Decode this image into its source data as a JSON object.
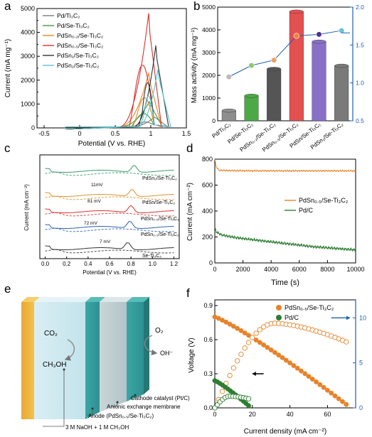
{
  "panels": {
    "a": {
      "letter": "a",
      "xlabel": "Potential (V vs. RHE)",
      "ylabel": "Current (mA mg⁻¹)",
      "legend": [
        "Pd/Ti₃C₂",
        "Pd/Se-Ti₃C₂",
        "PdSn₀.₂/Se-Ti₃C₂",
        "PdSn₀.₅/Se-Ti₃C₂",
        "PdSn₁/Se-Ti₃C₂",
        "PdSn₂/Se-Ti₃C₂"
      ]
    },
    "b": {
      "letter": "b",
      "ylabel": "Mass activity (mA mg⁻¹)"
    },
    "c": {
      "letter": "c",
      "xlabel": "Potential (V vs. RHE)",
      "ylabel": "Current (mA cm⁻²)",
      "curve_labels": [
        "PdSn₂/Se-Ti₃C₂",
        "PdSn/Se-Ti₃C₂",
        "PdSn₀.₅/Se-Ti₃C₂",
        "PdSn₀.₂/Se-Ti₃C₂",
        "Se-Ti₃C₂"
      ],
      "annotations": [
        "11mV",
        "81 mV",
        "72 mV",
        "7 mV"
      ]
    },
    "d": {
      "letter": "d",
      "xlabel": "Time (s)",
      "ylabel": "Current (mA cm⁻²)",
      "legend": [
        "PdSn₀.₅/Se-Ti₃C₂",
        "Pd/C"
      ]
    },
    "e": {
      "letter": "e",
      "labels": {
        "co2": "CO₂",
        "ch3oh": "CH₃OH",
        "o2": "O₂",
        "oh": "OH⁻",
        "cathode": "Cathode catalyst (Pt/C)",
        "membrane": "Anionic exchange membrane",
        "anode": "Anode (PdSn₀.₅/Se-Ti₃C₂)",
        "electrolyte": "3 M NaOH + 1 M CH₃OH"
      }
    },
    "f": {
      "letter": "f",
      "xlabel": "Current density (mA cm⁻²)",
      "ylabel": "Voltage (V)",
      "legend": [
        "PdSn₀.₅/Se-Ti₃C₂",
        "Pd/C"
      ]
    }
  },
  "colors": {
    "pd_ti3c2": "#7a7a7a",
    "pd_se": "#3f9e3a",
    "pdsn02": "#e8872a",
    "pdsn05": "#d93030",
    "pdsn1": "#333333",
    "pdsn2": "#59c3cf",
    "orange": "#e7832a",
    "green": "#2e7d32",
    "blue": "#1f5fb0"
  },
  "chart_data": [
    {
      "panel": "a",
      "type": "line",
      "xlabel": "Potential (V vs. RHE)",
      "ylabel": "Current (mA mg⁻¹)",
      "xlim": [
        -0.6,
        1.5
      ],
      "ylim": [
        0,
        5000
      ],
      "xticks": [
        -0.5,
        0.0,
        0.5,
        1.0,
        1.5
      ],
      "yticks": [
        0,
        500,
        1000,
        1500,
        2000,
        2500,
        3000,
        3500,
        4000,
        4500,
        5000
      ],
      "series": [
        {
          "name": "Pd/Ti₃C₂",
          "peak_x": 1.05,
          "peak_y": 450,
          "color_key": "pd_ti3c2"
        },
        {
          "name": "Pd/Se-Ti₃C₂",
          "peak_x": 0.98,
          "peak_y": 1100,
          "color_key": "pd_se"
        },
        {
          "name": "PdSn₀.₂/Se-Ti₃C₂",
          "peak_x": 0.97,
          "peak_y": 2300,
          "color_key": "pdsn02"
        },
        {
          "name": "PdSn₀.₅/Se-Ti₃C₂",
          "peak_x": 0.97,
          "peak_y": 4800,
          "color_key": "pdsn05"
        },
        {
          "name": "PdSn₁/Se-Ti₃C₂",
          "peak_x": 1.07,
          "peak_y": 3450,
          "color_key": "pdsn1"
        },
        {
          "name": "PdSn₂/Se-Ti₃C₂",
          "peak_x": 1.1,
          "peak_y": 2450,
          "color_key": "pdsn2"
        }
      ]
    },
    {
      "panel": "b",
      "type": "bar",
      "ylabel": "Mass activity (mA mg⁻¹)",
      "categories": [
        "Pd/Ti₃C₂",
        "Pd/Se-Ti₃C₂",
        "PdSn₀.₂/Se-Ti₃C₂",
        "PdSn₀.₅/Se-Ti₃C₂",
        "PdSn/Se-Ti₃C₂",
        "PdSn₂/Se-Ti₃C₂"
      ],
      "values": [
        450,
        1100,
        2280,
        4800,
        3480,
        2420
      ],
      "ylim": [
        0,
        5000
      ],
      "yticks": [
        0,
        1000,
        2000,
        3000,
        4000,
        5000
      ],
      "bar_colors": [
        "#8e8e8e",
        "#4caa45",
        "#555555",
        "#e35050",
        "#8870c8",
        "#7a7a7a"
      ],
      "right_axis": {
        "values": [
          1.08,
          1.23,
          1.3,
          1.62,
          1.64,
          1.69
        ],
        "ylim": [
          0.5,
          2.0
        ],
        "yticks": [
          0.5,
          1.0,
          1.5,
          2.0
        ],
        "marker_colors": [
          "#bbbbbb",
          "#8cc870",
          "#f0a060",
          "#f08040",
          "#503090",
          "#70c0d0"
        ]
      }
    },
    {
      "panel": "c",
      "type": "line",
      "xlabel": "Potential (V vs. RHE)",
      "ylabel": "Current (mA cm⁻²)",
      "xlim": [
        -0.05,
        1.25
      ],
      "xticks": [
        0.0,
        0.2,
        0.4,
        0.6,
        0.8,
        1.0,
        1.2
      ]
    },
    {
      "panel": "d",
      "type": "line",
      "xlabel": "Time (s)",
      "ylabel": "Current (mA cm⁻²)",
      "xlim": [
        0,
        10000
      ],
      "ylim": [
        0,
        800
      ],
      "xticks": [
        0,
        2000,
        4000,
        6000,
        8000,
        10000
      ],
      "yticks": [
        0,
        200,
        400,
        600,
        800
      ],
      "series": [
        {
          "name": "PdSn₀.₅/Se-Ti₃C₂",
          "x": [
            0,
            100,
            300,
            1000,
            3000,
            6000,
            10000
          ],
          "y": [
            800,
            740,
            715,
            712,
            710,
            710,
            710
          ]
        },
        {
          "name": "Pd/C",
          "x": [
            0,
            100,
            500,
            1500,
            3000,
            5000,
            7000,
            10000
          ],
          "y": [
            270,
            240,
            215,
            195,
            175,
            150,
            125,
            100
          ]
        }
      ]
    },
    {
      "panel": "f",
      "type": "scatter",
      "xlabel": "Current density (mA cm⁻²)",
      "ylabel": "Voltage (V)",
      "xlim": [
        0,
        75
      ],
      "ylim": [
        0,
        0.95
      ],
      "xticks": [
        0,
        20,
        40,
        60
      ],
      "yticks": [
        0.0,
        0.3,
        0.6,
        0.9
      ],
      "right_axis": {
        "ylim": [
          0,
          12
        ],
        "yticks": [
          0,
          5,
          10
        ]
      },
      "series": [
        {
          "name": "PdSn₀.₅/Se-Ti₃C₂",
          "voltage_start": 0.8,
          "voltage_end": 0.03,
          "jmax": 70,
          "pmax": 9.4,
          "jpmax": 32
        },
        {
          "name": "Pd/C",
          "voltage_start": 0.24,
          "voltage_end": 0.02,
          "jmax": 18,
          "pmax": 1.3,
          "jpmax": 8
        }
      ]
    }
  ]
}
